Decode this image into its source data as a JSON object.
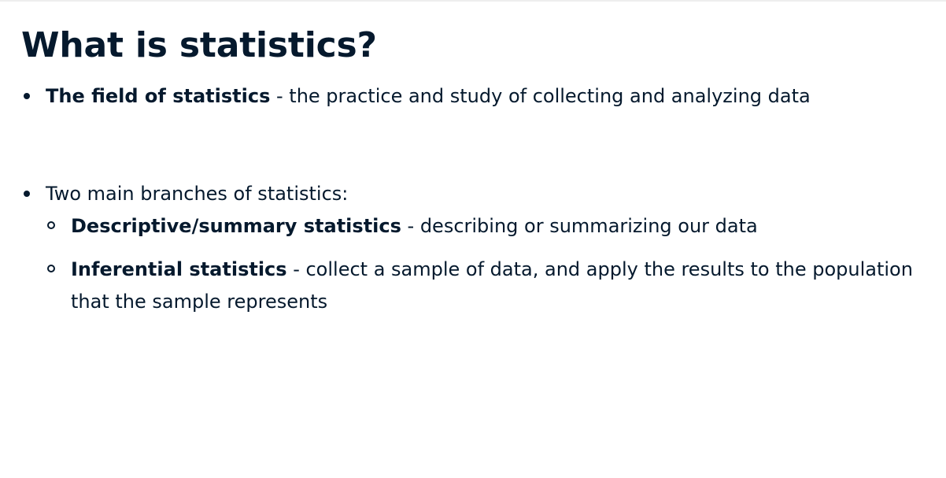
{
  "slide": {
    "title": "What is statistics?",
    "bullets": [
      {
        "bold": "The field of statistics",
        "text": " - the practice and study of collecting and analyzing data"
      },
      {
        "text": "Two main branches of statistics:",
        "sub_items": [
          {
            "bold": "Descriptive/summary statistics",
            "text": " - describing or summarizing our data"
          },
          {
            "bold": "Inferential statistics",
            "text": " - collect a sample of data, and apply the results to the population",
            "text_line2": "that the sample represents"
          }
        ]
      }
    ]
  }
}
